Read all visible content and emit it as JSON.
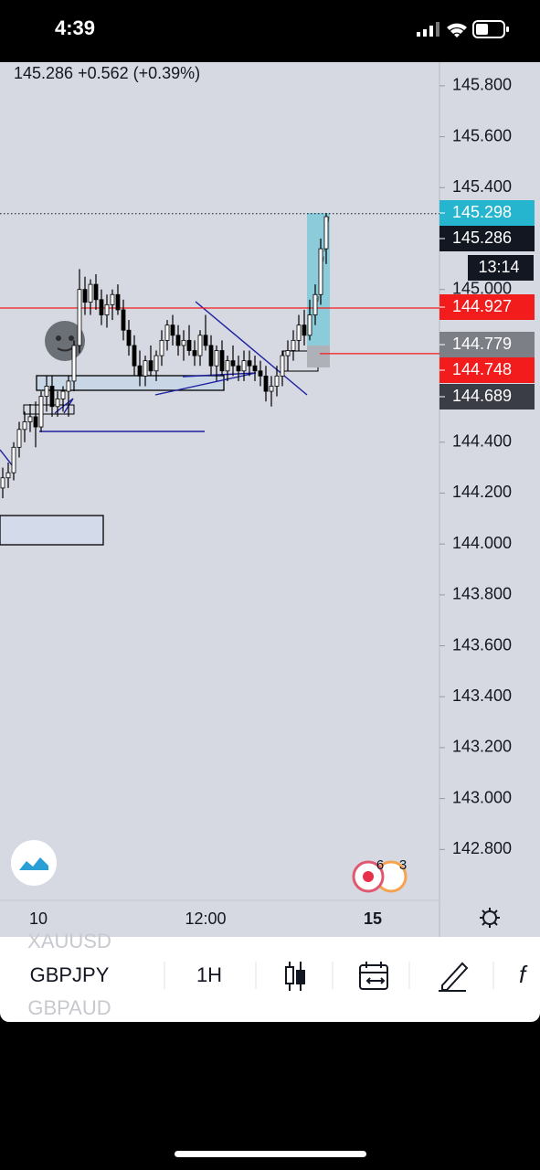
{
  "status_bar": {
    "time": "4:39"
  },
  "header": {
    "quote": "145.286 +0.562 (+0.39%)"
  },
  "price_axis": {
    "ylim": [
      142.6,
      145.893
    ],
    "ticks": [
      {
        "value": 145.8,
        "label": "145.800"
      },
      {
        "value": 145.6,
        "label": "145.600"
      },
      {
        "value": 145.4,
        "label": "145.400"
      },
      {
        "value": 145.0,
        "label": "145.000"
      },
      {
        "value": 144.4,
        "label": "144.400"
      },
      {
        "value": 144.2,
        "label": "144.200"
      },
      {
        "value": 144.0,
        "label": "144.000"
      },
      {
        "value": 143.8,
        "label": "143.800"
      },
      {
        "value": 143.6,
        "label": "143.600"
      },
      {
        "value": 143.4,
        "label": "143.400"
      },
      {
        "value": 143.2,
        "label": "143.200"
      },
      {
        "value": 143.0,
        "label": "143.000"
      },
      {
        "value": 142.8,
        "label": "142.800"
      }
    ]
  },
  "price_tags": [
    {
      "value": 145.298,
      "label": "145.298",
      "color": "#26b5cf"
    },
    {
      "value": 145.286,
      "label": "145.286",
      "color": "#131722"
    },
    {
      "value": 144.927,
      "label": "144.927",
      "color": "#f21c1c"
    },
    {
      "value": 144.779,
      "label": "144.779",
      "color": "#7d7f86"
    },
    {
      "value": 144.748,
      "label": "144.748",
      "color": "#f21c1c"
    },
    {
      "value": 144.689,
      "label": "144.689",
      "color": "#3a3d45"
    }
  ],
  "countdown": "13:14",
  "time_axis": [
    "10",
    "12:00",
    "15"
  ],
  "badges": [
    "6",
    "3"
  ],
  "toolbar": {
    "prev_symbol": "XAUUSD",
    "symbol": "GBPJPY",
    "next_symbol": "GBPAUD",
    "interval": "1H"
  },
  "candles": [
    [
      144.22,
      144.3,
      144.18,
      144.26
    ],
    [
      144.26,
      144.32,
      144.22,
      144.28
    ],
    [
      144.28,
      144.4,
      144.25,
      144.38
    ],
    [
      144.38,
      144.48,
      144.34,
      144.45
    ],
    [
      144.45,
      144.52,
      144.4,
      144.48
    ],
    [
      144.48,
      144.55,
      144.44,
      144.5
    ],
    [
      144.5,
      144.56,
      144.38,
      144.46
    ],
    [
      144.46,
      144.6,
      144.44,
      144.58
    ],
    [
      144.58,
      144.66,
      144.52,
      144.62
    ],
    [
      144.62,
      144.66,
      144.5,
      144.54
    ],
    [
      144.54,
      144.6,
      144.5,
      144.57
    ],
    [
      144.57,
      144.62,
      144.52,
      144.6
    ],
    [
      144.6,
      144.66,
      144.5,
      144.64
    ],
    [
      144.64,
      144.8,
      144.6,
      144.78
    ],
    [
      144.78,
      145.08,
      144.75,
      145.0
    ],
    [
      145.0,
      145.05,
      144.9,
      144.95
    ],
    [
      144.95,
      145.04,
      144.9,
      145.02
    ],
    [
      145.02,
      145.06,
      144.92,
      144.96
    ],
    [
      144.96,
      145.0,
      144.86,
      144.9
    ],
    [
      144.9,
      144.98,
      144.85,
      144.94
    ],
    [
      144.94,
      145.0,
      144.88,
      144.98
    ],
    [
      144.98,
      145.02,
      144.9,
      144.92
    ],
    [
      144.92,
      144.96,
      144.8,
      144.84
    ],
    [
      144.84,
      144.88,
      144.74,
      144.78
    ],
    [
      144.78,
      144.82,
      144.66,
      144.7
    ],
    [
      144.7,
      144.76,
      144.62,
      144.66
    ],
    [
      144.66,
      144.74,
      144.62,
      144.72
    ],
    [
      144.72,
      144.78,
      144.66,
      144.68
    ],
    [
      144.68,
      144.76,
      144.64,
      144.74
    ],
    [
      144.74,
      144.84,
      144.7,
      144.8
    ],
    [
      144.8,
      144.88,
      144.76,
      144.86
    ],
    [
      144.86,
      144.9,
      144.78,
      144.82
    ],
    [
      144.82,
      144.86,
      144.74,
      144.78
    ],
    [
      144.78,
      144.84,
      144.72,
      144.8
    ],
    [
      144.8,
      144.86,
      144.74,
      144.76
    ],
    [
      144.76,
      144.8,
      144.7,
      144.74
    ],
    [
      144.74,
      144.84,
      144.7,
      144.82
    ],
    [
      144.82,
      144.9,
      144.76,
      144.78
    ],
    [
      144.78,
      144.82,
      144.66,
      144.7
    ],
    [
      144.7,
      144.78,
      144.64,
      144.76
    ],
    [
      144.76,
      144.8,
      144.66,
      144.68
    ],
    [
      144.68,
      144.74,
      144.64,
      144.72
    ],
    [
      144.72,
      144.78,
      144.66,
      144.7
    ],
    [
      144.7,
      144.74,
      144.64,
      144.68
    ],
    [
      144.68,
      144.76,
      144.64,
      144.72
    ],
    [
      144.72,
      144.76,
      144.66,
      144.7
    ],
    [
      144.7,
      144.74,
      144.64,
      144.68
    ],
    [
      144.68,
      144.72,
      144.62,
      144.66
    ],
    [
      144.66,
      144.7,
      144.56,
      144.6
    ],
    [
      144.6,
      144.66,
      144.54,
      144.62
    ],
    [
      144.62,
      144.7,
      144.58,
      144.66
    ],
    [
      144.66,
      144.76,
      144.62,
      144.74
    ],
    [
      144.74,
      144.8,
      144.68,
      144.76
    ],
    [
      144.76,
      144.84,
      144.72,
      144.8
    ],
    [
      144.8,
      144.9,
      144.76,
      144.86
    ],
    [
      144.86,
      144.92,
      144.78,
      144.82
    ],
    [
      144.82,
      144.96,
      144.8,
      144.9
    ],
    [
      144.9,
      145.02,
      144.86,
      144.98
    ],
    [
      144.98,
      145.2,
      144.94,
      145.16
    ],
    [
      145.16,
      145.3,
      145.1,
      145.286
    ]
  ]
}
